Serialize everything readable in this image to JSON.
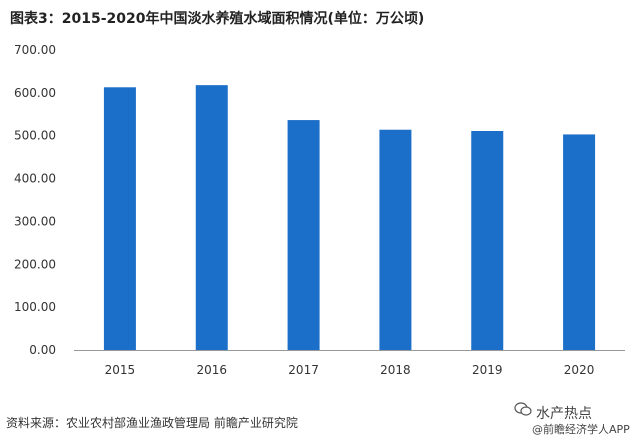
{
  "title": "图表3：2015-2020年中国淡水养殖水域面积情况(单位：万公顷)",
  "source": "资料来源：农业农村部渔业渔政管理局 前瞻产业研究院",
  "watermark_badge": "水产热点",
  "watermark_app": "@前瞻经济学人APP",
  "colors": {
    "bar": "#1c6fc9",
    "axis": "#999999",
    "text": "#333333"
  },
  "chart_data": {
    "type": "bar",
    "title": "图表3：2015-2020年中国淡水养殖水域面积情况(单位：万公顷)",
    "xlabel": "",
    "ylabel": "",
    "categories": [
      "2015",
      "2016",
      "2017",
      "2018",
      "2019",
      "2020"
    ],
    "values": [
      613.0,
      618.0,
      536.5,
      514.0,
      511.0,
      503.0
    ],
    "ylim": [
      0,
      700
    ],
    "yticks": [
      "0.00",
      "100.00",
      "200.00",
      "300.00",
      "400.00",
      "500.00",
      "600.00",
      "700.00"
    ],
    "grid": false,
    "legend": "none"
  }
}
